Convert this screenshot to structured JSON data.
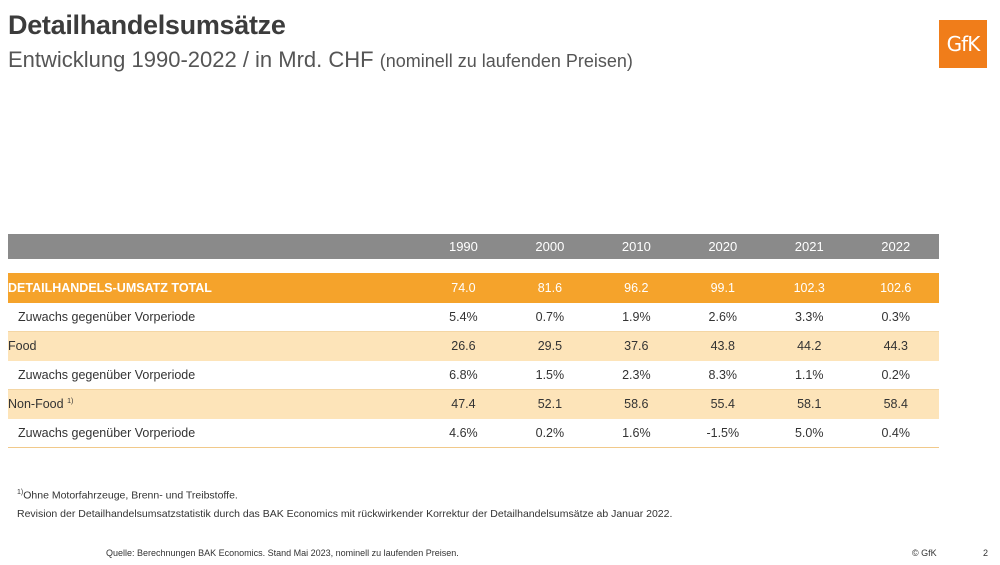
{
  "header": {
    "title": "Detailhandelsumsätze",
    "subtitle_main": "Entwicklung 1990-2022 / in Mrd. CHF",
    "subtitle_note": "(nominell zu laufenden Preisen)",
    "logo_text": "GfK"
  },
  "table": {
    "columns": [
      "1990",
      "2000",
      "2010",
      "2020",
      "2021",
      "2022"
    ],
    "rows": [
      {
        "label": "DETAILHANDELS-UMSATZ TOTAL",
        "values": [
          "74.0",
          "81.6",
          "96.2",
          "99.1",
          "102.3",
          "102.6"
        ]
      },
      {
        "label": "Zuwachs gegenüber Vorperiode",
        "values": [
          "5.4%",
          "0.7%",
          "1.9%",
          "2.6%",
          "3.3%",
          "0.3%"
        ]
      },
      {
        "label": "Food",
        "values": [
          "26.6",
          "29.5",
          "37.6",
          "43.8",
          "44.2",
          "44.3"
        ]
      },
      {
        "label": "Zuwachs gegenüber Vorperiode",
        "values": [
          "6.8%",
          "1.5%",
          "2.3%",
          "8.3%",
          "1.1%",
          "0.2%"
        ]
      },
      {
        "label": "Non-Food",
        "footnote_mark": "1)",
        "values": [
          "47.4",
          "52.1",
          "58.6",
          "55.4",
          "58.1",
          "58.4"
        ]
      },
      {
        "label": "Zuwachs gegenüber Vorperiode",
        "values": [
          "4.6%",
          "0.2%",
          "1.6%",
          "-1.5%",
          "5.0%",
          "0.4%"
        ]
      }
    ]
  },
  "footnotes": {
    "mark": "1)",
    "note1": "Ohne Motorfahrzeuge, Brenn- und Treibstoffe.",
    "note2": "Revision der Detailhandelsumsatzstatistik durch das BAK Economics mit rückwirkender Korrektur der Detailhandelsumsätze ab Januar 2022."
  },
  "footer": {
    "source": "Quelle: Berechnungen BAK Economics. Stand Mai 2023, nominell zu laufenden Preisen.",
    "copyright": "© GfK",
    "page_number": "2"
  },
  "colors": {
    "header_row": "#8a8a8a",
    "total_row": "#f5a32b",
    "band_row": "#fde4b9",
    "logo": "#f07d1a"
  }
}
